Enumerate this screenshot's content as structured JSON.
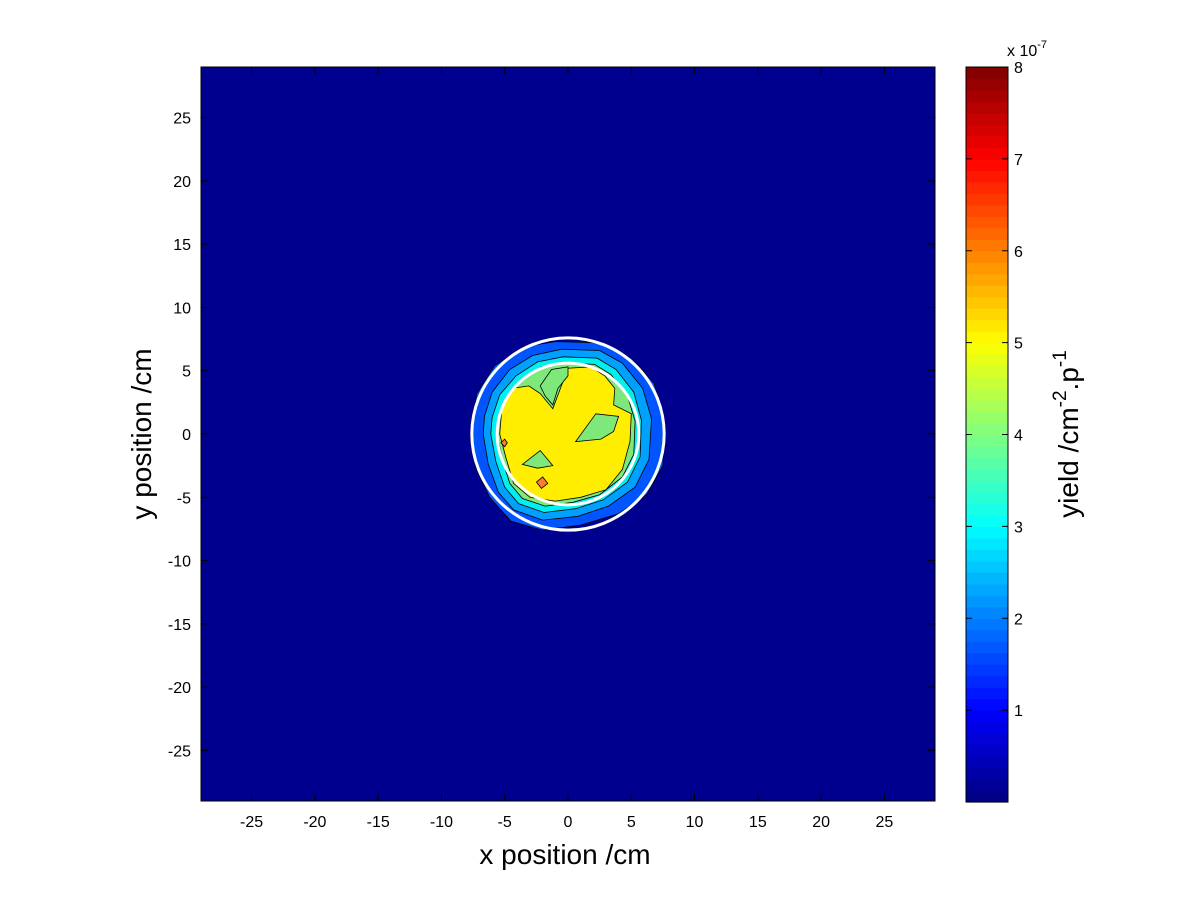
{
  "chart_data": {
    "type": "heatmap",
    "subtype": "filled-contour",
    "title": "",
    "xlabel": "x position /cm",
    "ylabel": "y position /cm",
    "xlim": [
      -29,
      29
    ],
    "ylim": [
      -29,
      29
    ],
    "x_ticks": [
      -25,
      -20,
      -15,
      -10,
      -5,
      0,
      5,
      10,
      15,
      20,
      25
    ],
    "y_ticks": [
      25,
      20,
      15,
      10,
      5,
      0,
      -5,
      -10,
      -15,
      -20,
      -25
    ],
    "x_tick_labels": [
      "-25",
      "-20",
      "-15",
      "-10",
      "-5",
      "0",
      "5",
      "10",
      "15",
      "20",
      "25"
    ],
    "y_tick_labels": [
      "25",
      "20",
      "15",
      "10",
      "5",
      "0",
      "-5",
      "-10",
      "-15",
      "-20",
      "-25"
    ],
    "grid": false,
    "colormap": "jet",
    "background_value": 0,
    "colorbar": {
      "label_parts": [
        "yield /cm",
        "-2",
        ".p",
        "-1"
      ],
      "exponent_prefix": "x 10",
      "exponent_power": "-7",
      "clim": [
        0,
        8
      ],
      "ticks": [
        1,
        2,
        3,
        4,
        5,
        6,
        7,
        8
      ],
      "tick_labels": [
        "1",
        "2",
        "3",
        "4",
        "5",
        "6",
        "7",
        "8"
      ],
      "placement": "right"
    },
    "regions": [
      {
        "level": 1.0,
        "color": "#0055ff",
        "polygon": [
          [
            -7.6,
            1.2
          ],
          [
            -7.2,
            3.2
          ],
          [
            -5.8,
            5.4
          ],
          [
            -3.5,
            6.9
          ],
          [
            -1,
            7.3
          ],
          [
            2.5,
            7.2
          ],
          [
            5,
            6
          ],
          [
            6.8,
            4
          ],
          [
            7.6,
            1
          ],
          [
            7.5,
            -2.5
          ],
          [
            6.2,
            -4.8
          ],
          [
            4,
            -6.3
          ],
          [
            1,
            -7.2
          ],
          [
            -2,
            -7.6
          ],
          [
            -4.5,
            -6.9
          ],
          [
            -6.2,
            -5
          ],
          [
            -7.2,
            -2.8
          ],
          [
            -7.7,
            -0.5
          ]
        ]
      },
      {
        "level": 2.0,
        "color": "#00a0ff",
        "polygon": [
          [
            -6.6,
            1.4
          ],
          [
            -6,
            3.3
          ],
          [
            -4.6,
            5.1
          ],
          [
            -2.8,
            6.2
          ],
          [
            -0.5,
            6.7
          ],
          [
            2.5,
            6.6
          ],
          [
            4.3,
            5.6
          ],
          [
            5.9,
            3.6
          ],
          [
            6.6,
            1.2
          ],
          [
            6.4,
            -2
          ],
          [
            5.3,
            -4.2
          ],
          [
            3.2,
            -5.7
          ],
          [
            0.8,
            -6.5
          ],
          [
            -2,
            -6.8
          ],
          [
            -4.3,
            -6
          ],
          [
            -5.5,
            -4.6
          ],
          [
            -6.3,
            -2.4
          ],
          [
            -6.7,
            0
          ]
        ]
      },
      {
        "level": 3.0,
        "color": "#00f0f0",
        "polygon": [
          [
            -6,
            1.3
          ],
          [
            -5.4,
            3.1
          ],
          [
            -4.1,
            4.6
          ],
          [
            -2.4,
            5.7
          ],
          [
            -0.4,
            6.1
          ],
          [
            2.3,
            6
          ],
          [
            3.8,
            5.1
          ],
          [
            5.2,
            3.3
          ],
          [
            5.8,
            1.1
          ],
          [
            5.7,
            -1.8
          ],
          [
            4.7,
            -3.8
          ],
          [
            2.8,
            -5.2
          ],
          [
            0.6,
            -5.9
          ],
          [
            -1.9,
            -6.2
          ],
          [
            -3.9,
            -5.5
          ],
          [
            -5,
            -4.2
          ],
          [
            -5.7,
            -2.2
          ],
          [
            -6.1,
            0
          ]
        ]
      },
      {
        "level": 4.0,
        "color": "#7fe87a",
        "polygon": [
          [
            -5.5,
            1.2
          ],
          [
            -4.9,
            2.9
          ],
          [
            -3.7,
            4.2
          ],
          [
            -2.1,
            5.3
          ],
          [
            -0.3,
            5.6
          ],
          [
            2.1,
            5.5
          ],
          [
            3.4,
            4.7
          ],
          [
            4.7,
            3
          ],
          [
            5.3,
            1
          ],
          [
            5.2,
            -1.6
          ],
          [
            4.3,
            -3.4
          ],
          [
            2.5,
            -4.8
          ],
          [
            0.4,
            -5.4
          ],
          [
            -1.8,
            -5.7
          ],
          [
            -3.6,
            -5.1
          ],
          [
            -4.6,
            -3.9
          ],
          [
            -5.2,
            -2
          ],
          [
            -5.6,
            0
          ]
        ]
      },
      {
        "level": 5.0,
        "color": "#ffee00",
        "polygon": [
          [
            -5.2,
            2.3
          ],
          [
            -4.4,
            3.6
          ],
          [
            -3.1,
            3.8
          ],
          [
            -2.2,
            3.2
          ],
          [
            -1.2,
            2
          ],
          [
            -0.6,
            3.6
          ],
          [
            0,
            5.2
          ],
          [
            1.8,
            5.3
          ],
          [
            2.9,
            4.6
          ],
          [
            3.7,
            3.6
          ],
          [
            3.6,
            2.3
          ],
          [
            5,
            1.6
          ],
          [
            4.9,
            -0.6
          ],
          [
            4.3,
            -2.8
          ],
          [
            3,
            -4.4
          ],
          [
            1,
            -5
          ],
          [
            -1,
            -5.3
          ],
          [
            -3,
            -5
          ],
          [
            -4.3,
            -3.9
          ],
          [
            -4.9,
            -1.9
          ],
          [
            -5.4,
            0
          ]
        ]
      },
      {
        "level": 4.0,
        "color": "#7fe87a",
        "polygon": [
          [
            -2.2,
            3.8
          ],
          [
            -1.3,
            5.1
          ],
          [
            0,
            5.3
          ],
          [
            0,
            4.6
          ],
          [
            -0.8,
            3.6
          ],
          [
            -1.2,
            2.3
          ],
          [
            -1.8,
            3
          ]
        ]
      },
      {
        "level": 4.0,
        "color": "#7fe87a",
        "polygon": [
          [
            0.6,
            -0.6
          ],
          [
            2.2,
            1.6
          ],
          [
            4,
            1.4
          ],
          [
            3.6,
            0.2
          ],
          [
            2.6,
            -0.4
          ]
        ]
      },
      {
        "level": 4.0,
        "color": "#7fe87a",
        "polygon": [
          [
            -3.6,
            -2.4
          ],
          [
            -2.2,
            -1.3
          ],
          [
            -1.2,
            -2.5
          ],
          [
            -2.4,
            -2.7
          ]
        ]
      },
      {
        "level": 6.0,
        "color": "#ff7a33",
        "polygon": [
          [
            -5.3,
            -0.7
          ],
          [
            -5.0,
            -0.4
          ],
          [
            -4.8,
            -0.7
          ],
          [
            -5.0,
            -1.0
          ]
        ]
      },
      {
        "level": 6.0,
        "color": "#ff7a33",
        "polygon": [
          [
            -2.5,
            -3.8
          ],
          [
            -2.0,
            -3.4
          ],
          [
            -1.6,
            -3.9
          ],
          [
            -2.1,
            -4.3
          ]
        ]
      }
    ],
    "overlays": [
      {
        "shape": "circle",
        "center": [
          0,
          0
        ],
        "radius": 7.6,
        "color": "#ffffff"
      },
      {
        "shape": "circle",
        "center": [
          0,
          0
        ],
        "radius": 5.6,
        "color": "#ffffff"
      }
    ]
  }
}
